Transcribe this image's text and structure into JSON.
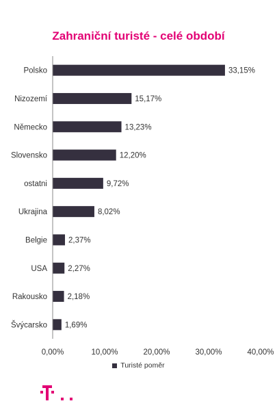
{
  "chart_data": {
    "type": "bar",
    "orientation": "horizontal",
    "title": "Zahraniční turisté - celé období",
    "categories": [
      "Polsko",
      "Nizozemí",
      "Německo",
      "Slovensko",
      "ostatni",
      "Ukrajina",
      "Belgie",
      "USA",
      "Rakousko",
      "Švýcarsko"
    ],
    "series": [
      {
        "name": "Turisté poměr",
        "values": [
          33.15,
          15.17,
          13.23,
          12.2,
          9.72,
          8.02,
          2.37,
          2.27,
          2.18,
          1.69
        ],
        "value_labels": [
          "33,15%",
          "15,17%",
          "13,23%",
          "12,20%",
          "9,72%",
          "8,02%",
          "2,37%",
          "2,27%",
          "2,18%",
          "1,69%"
        ]
      }
    ],
    "xlim": [
      0,
      40
    ],
    "x_ticks": [
      0,
      10,
      20,
      30,
      40
    ],
    "x_tick_labels": [
      "0,00%",
      "10,00%",
      "20,00%",
      "30,00%",
      "40,00%"
    ],
    "grid": false,
    "legend_position": "bottom",
    "bar_color": "#35303f",
    "title_color": "#e20074",
    "brand_color": "#e20074"
  },
  "logo": {
    "icon": "telekom-t-logo-icon"
  }
}
